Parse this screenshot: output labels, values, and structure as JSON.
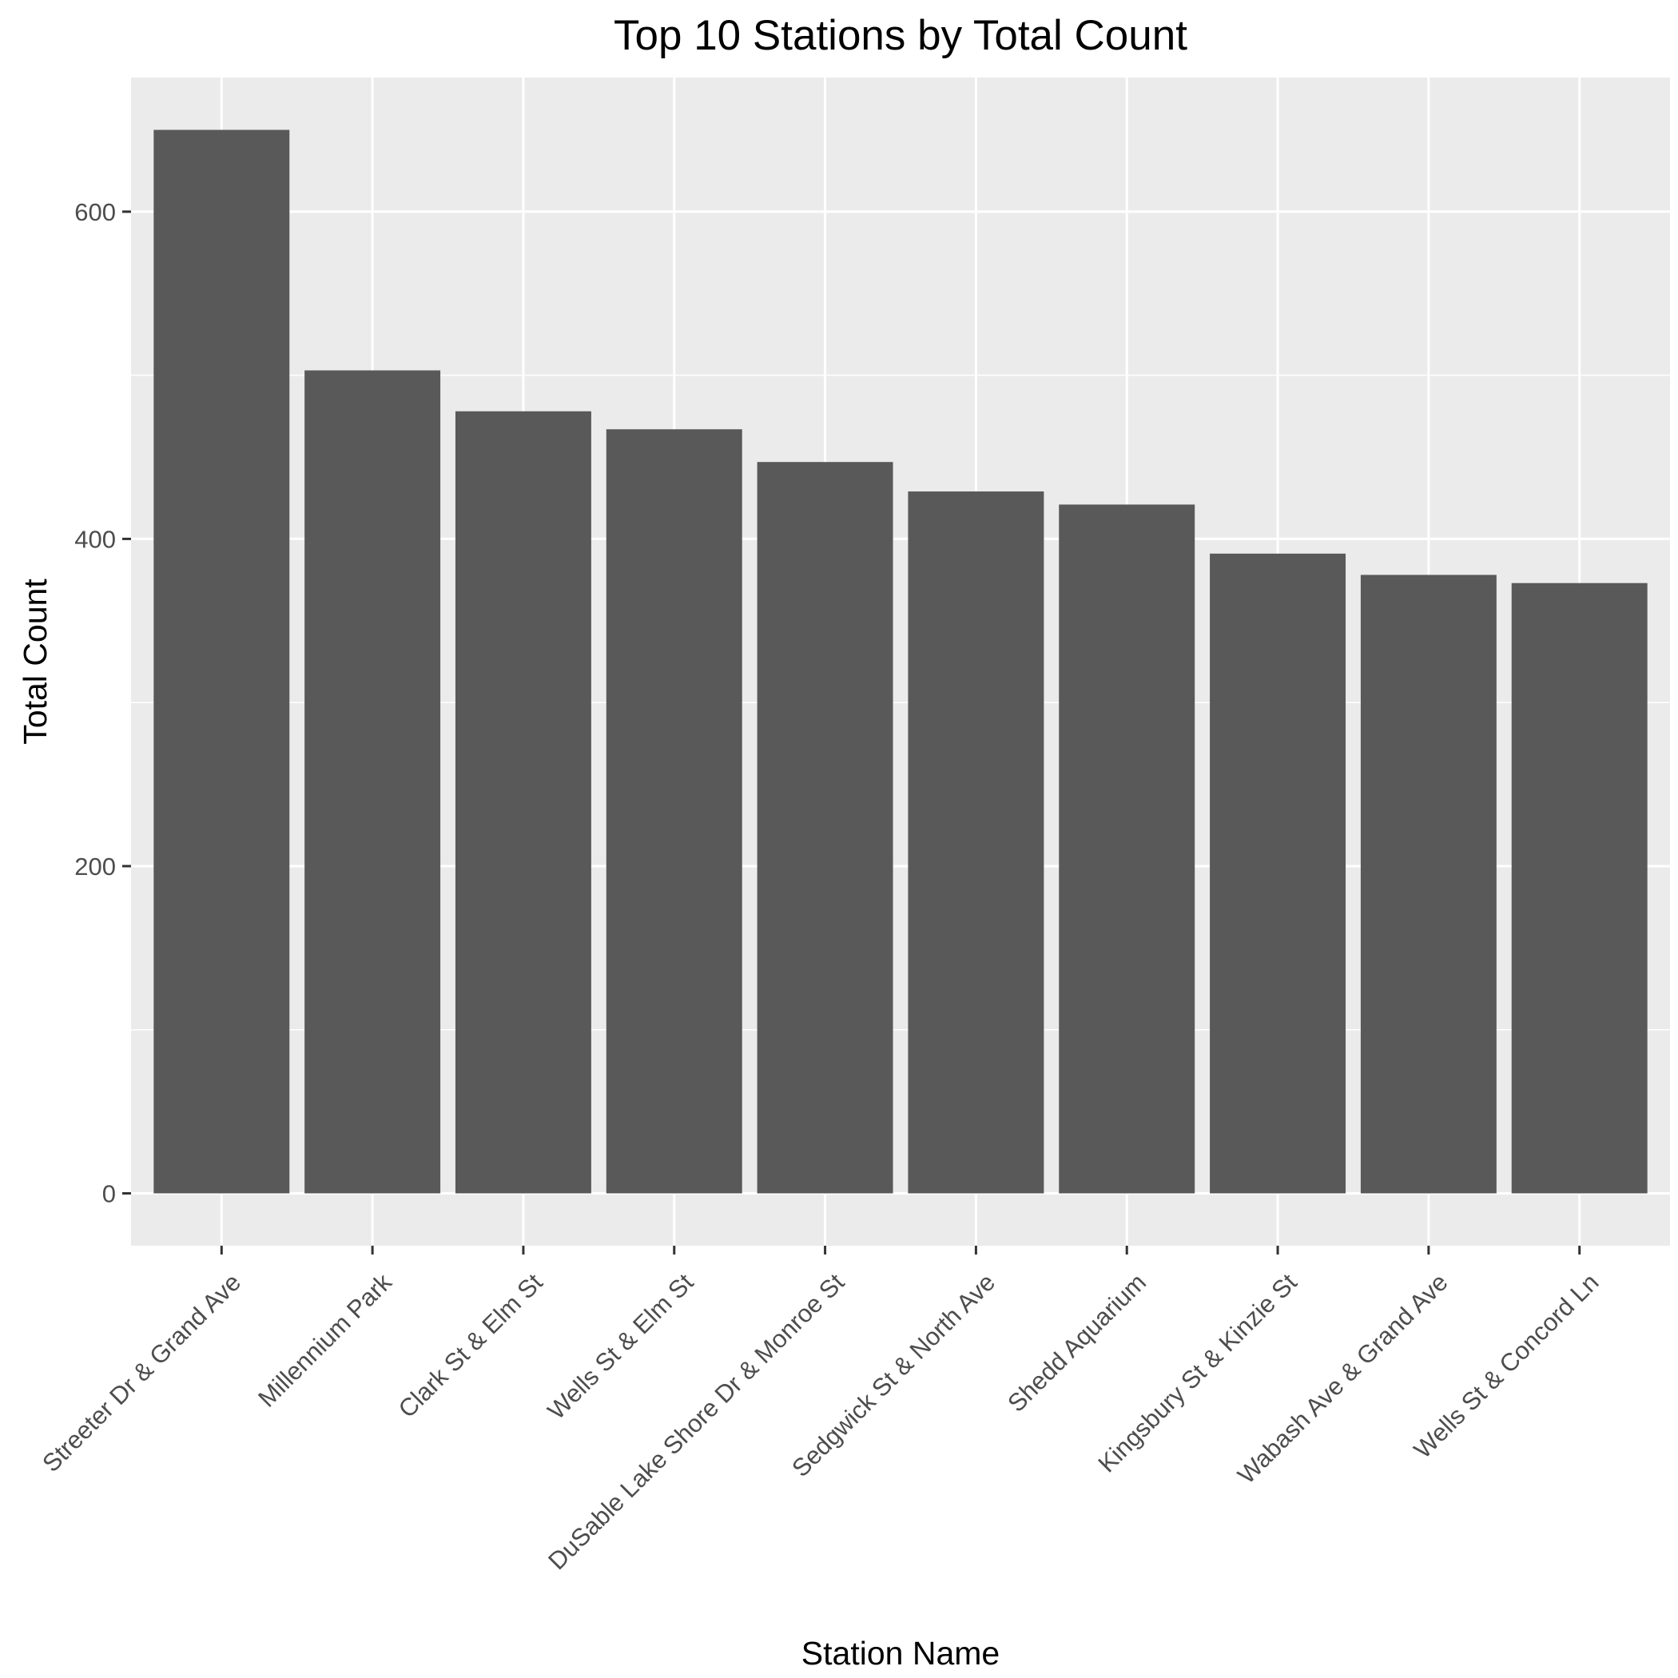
{
  "chart_data": {
    "type": "bar",
    "title": "Top 10 Stations by Total Count",
    "xlabel": "Station Name",
    "ylabel": "Total Count",
    "categories": [
      "Streeter Dr & Grand Ave",
      "Millennium Park",
      "Clark St & Elm St",
      "Wells St & Elm St",
      "DuSable Lake Shore Dr & Monroe St",
      "Sedgwick St & North Ave",
      "Shedd Aquarium",
      "Kingsbury St & Kinzie St",
      "Wabash Ave & Grand Ave",
      "Wells St & Concord Ln"
    ],
    "values": [
      650,
      503,
      478,
      467,
      447,
      429,
      421,
      391,
      378,
      373
    ],
    "ylim": [
      -32,
      682
    ],
    "yticks": [
      0,
      200,
      400,
      600
    ],
    "grid": true,
    "bar_color": "#595959",
    "panel_color": "#EBEBEB",
    "grid_color": "#FFFFFF"
  }
}
